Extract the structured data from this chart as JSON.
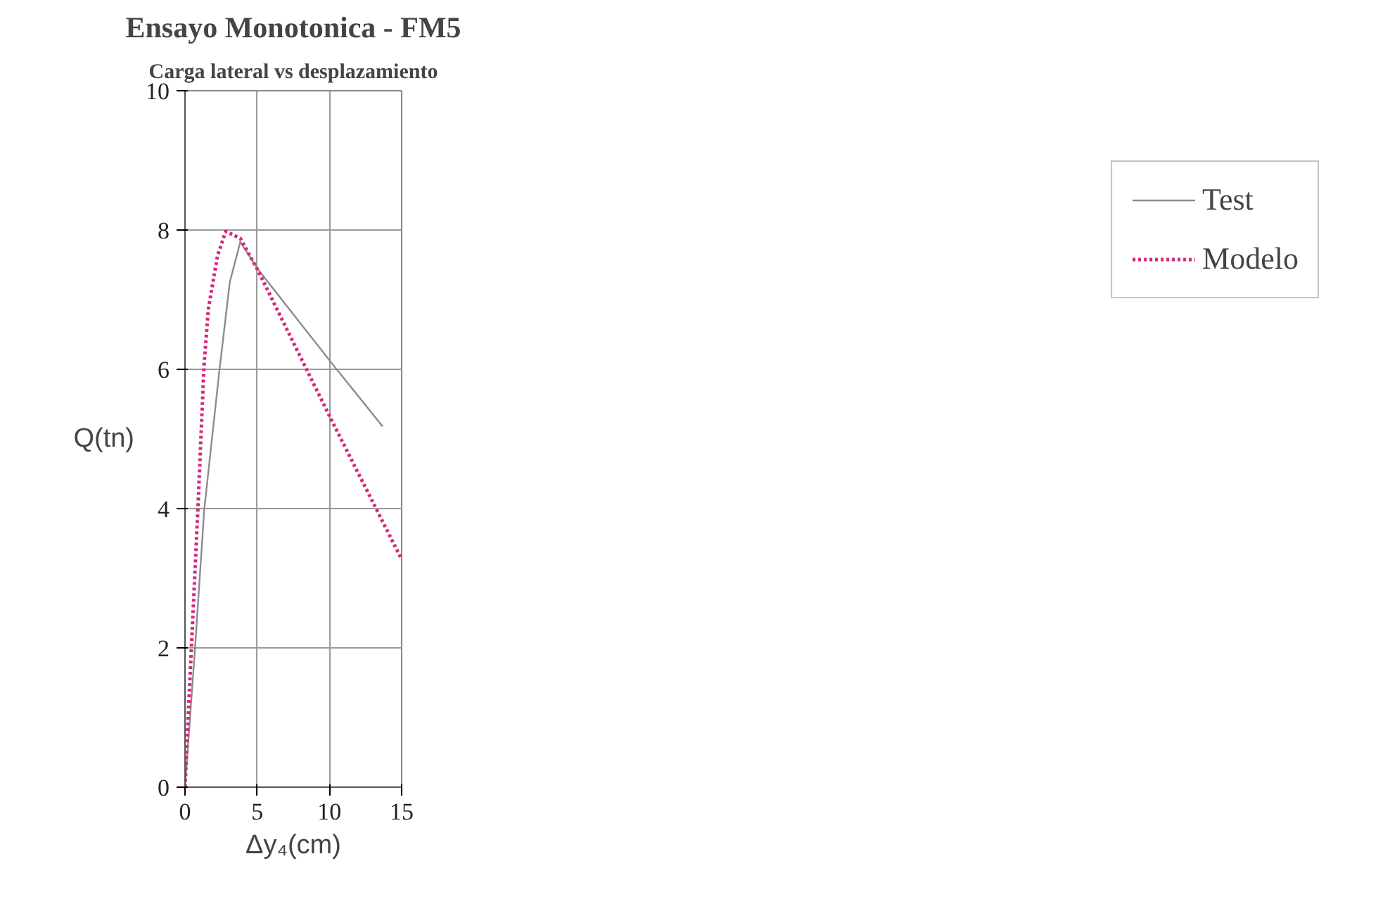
{
  "chart_data": {
    "type": "line",
    "title": "Ensayo Monotonica - FM5",
    "subtitle": "Carga lateral vs desplazamiento",
    "xlabel": "Δy₄(cm)",
    "ylabel": "Q(tn)",
    "xlim": [
      0,
      15
    ],
    "xticks": [
      0,
      5,
      10,
      15
    ],
    "ylim": [
      0,
      10
    ],
    "yticks": [
      0,
      2,
      4,
      6,
      8,
      10
    ],
    "grid": true,
    "legend": "right",
    "marker": "none",
    "series": [
      {
        "name": "Test",
        "color": "#8c8c8c",
        "line_style": "solid",
        "x": [
          0,
          0.69,
          1.33,
          2.38,
          3.1,
          3.83,
          5,
          10,
          13.68
        ],
        "values": [
          0,
          1.98,
          3.98,
          5.98,
          7.25,
          7.83,
          7.45,
          6.13,
          5.18
        ]
      },
      {
        "name": "Modelo",
        "color": "#d6287a",
        "line_style": "dotted",
        "x": [
          0,
          0.24,
          0.89,
          1.31,
          1.61,
          2.26,
          2.82,
          3.83,
          5,
          10,
          15
        ],
        "values": [
          0,
          1.1,
          3.98,
          6.03,
          6.86,
          7.64,
          7.98,
          7.88,
          7.44,
          5.33,
          3.27
        ]
      }
    ]
  }
}
